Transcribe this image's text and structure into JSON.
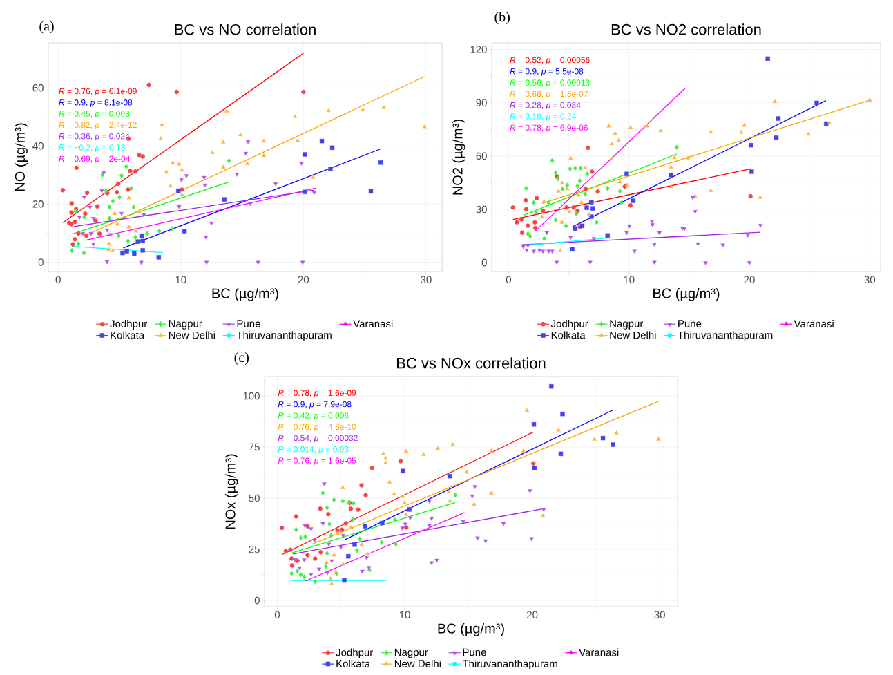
{
  "chart_data": [
    {
      "type": "scatter",
      "title": "BC vs NO correlation",
      "xlabel": "BC (µg/m³)",
      "ylabel": "NO (µg/m³)",
      "xlim": [
        -0.8,
        31.3
      ],
      "ylim": [
        -3.2,
        75.5
      ],
      "xticks": [
        0,
        10,
        20,
        30
      ],
      "yticks": [
        0,
        20,
        40,
        60
      ],
      "grid": true,
      "legend": "bottom",
      "annotations": [
        "(a)",
        "*R* = 0.76, *p* = 6.1e-09",
        "*R* = 0.9, *p* = 8.1e-08",
        "*R* = 0.45, *p* = 0.003",
        "*R* = 0.82, *p* = 2.4e-12",
        "*R* = 0.36, *p* = 0.024",
        "*R* = −0.2, *p* = 0.18",
        "*R* = 0.69, *p* = 2e-04"
      ],
      "series": [
        {
          "name": "Thiruvananthapuram",
          "color": "#00ffff",
          "marker": "circle"
        },
        {
          "name": "Varanasi",
          "color": "#ff00ff",
          "marker": "triangle"
        },
        {
          "name": "Jodhpur",
          "color": "#f44444",
          "marker": "circle",
          "x": [
            0.38,
            0.9,
            1.09,
            1.09,
            1.1,
            1.2,
            1.37,
            1.37,
            1.46,
            1.5,
            1.65,
            2.2,
            2.3,
            2.36,
            3.05,
            3.2,
            3.37,
            4.0,
            4.8,
            4.9,
            5.7,
            5.74,
            5.87,
            6.3,
            6.6,
            6.9,
            7.4,
            9.66,
            10.1,
            20.0
          ],
          "values": [
            24.8,
            13.5,
            13.1,
            17.1,
            20.2,
            6.2,
            13.9,
            7.9,
            18.3,
            32.5,
            9.9,
            16.7,
            9.1,
            23.9,
            14.3,
            19.2,
            9.8,
            23.8,
            24.1,
            27,
            25,
            42.5,
            31.4,
            31.2,
            36.9,
            36.4,
            61,
            58.6,
            25,
            58.6
          ]
        },
        {
          "name": "Kolkata",
          "color": "#4444ee",
          "marker": "square",
          "x": [
            5.25,
            5.6,
            6.2,
            6.9,
            6.5,
            6.9,
            8.2,
            6.8,
            10.3,
            9.8,
            13.55,
            20.1,
            21.5,
            22.35,
            22.2,
            26.3,
            20.1,
            25.5
          ],
          "values": [
            3.2,
            3.8,
            3.0,
            4.1,
            7.1,
            7.3,
            1.7,
            9.1,
            10.7,
            24.6,
            21.6,
            37.1,
            41.7,
            39.4,
            32.1,
            34.3,
            24.2,
            24.4
          ]
        },
        {
          "name": "Nagpur",
          "color": "#44ee44",
          "marker": "diamond",
          "x": [
            1.12,
            2.1,
            1.65,
            1.42,
            2.12,
            4.18,
            4.46,
            5.0,
            3.9,
            3.6,
            5.17,
            5.55,
            5.96,
            6.15,
            4.93,
            5.7,
            6.3,
            7.27,
            8.25,
            9.3,
            4.18,
            13.93
          ],
          "values": [
            4.0,
            3.2,
            6.3,
            17.5,
            15.5,
            19,
            21,
            22.4,
            24.6,
            30,
            29.8,
            32.9,
            25.4,
            19.0,
            9.1,
            7.3,
            8.6,
            9.9,
            10.7,
            11.5,
            15.1,
            34.9
          ]
        },
        {
          "name": "New Delhi",
          "color": "#ffb444",
          "marker": "triangle",
          "x": [
            4.14,
            4.09,
            4.46,
            4.6,
            4.84,
            5.78,
            5.78,
            6.34,
            6.62,
            8.36,
            8.46,
            8.83,
            9.15,
            9.34,
            9.84,
            10.1,
            10.1,
            12.58,
            13.46,
            13.74,
            13.46,
            14.87,
            16.76,
            16.76,
            15.43,
            19.3,
            19.53,
            20.8,
            22.05,
            24.84,
            26.55,
            29.88
          ],
          "values": [
            6.3,
            4.4,
            4.0,
            16.7,
            13.1,
            22.1,
            12.1,
            10.7,
            17.5,
            42.5,
            47.2,
            31,
            26.2,
            34.1,
            33.7,
            31.7,
            23.2,
            37.7,
            41.3,
            52,
            32.7,
            43.8,
            41.7,
            36.7,
            33.9,
            50.1,
            41.9,
            29.2,
            52.1,
            52.4,
            53.2,
            46.6
          ]
        },
        {
          "name": "Pune",
          "color": "#b055ee",
          "marker": "triangle-down",
          "x": [
            3.71,
            2.12,
            2.6,
            1.74,
            2.87,
            3.56,
            2.02,
            2.68,
            3.99,
            4.27,
            5.17,
            6.99,
            2.87,
            3.99,
            6.77,
            9.86,
            10.05,
            10.46,
            11.9,
            11.96,
            12.49,
            12.05,
            12.1,
            14.58,
            15.3,
            15.48,
            17.73,
            15.67,
            19.83,
            20.88,
            16.3,
            19.93
          ],
          "values": [
            30.8,
            22.4,
            19.0,
            15.5,
            15.1,
            24.6,
            9.9,
            9.9,
            11.1,
            9.5,
            16.8,
            16.3,
            6.3,
            0.2,
            0,
            19.2,
            28.4,
            29.8,
            29.2,
            26.6,
            13.5,
            8.7,
            0,
            30.3,
            37.5,
            41.5,
            27,
            20.2,
            34.1,
            24,
            0,
            0
          ]
        },
        {
          "type": "line",
          "color": "#ff0000",
          "x": [
            0.38,
            20.0
          ],
          "values": [
            13.6,
            71.9
          ]
        },
        {
          "type": "line",
          "color": "#0000ff",
          "x": [
            5.3,
            26.3
          ],
          "values": [
            4.9,
            39.0
          ]
        },
        {
          "type": "line",
          "color": "#00ff00",
          "x": [
            1.18,
            13.93
          ],
          "values": [
            9.7,
            27.6
          ]
        },
        {
          "type": "line",
          "color": "#ffa500",
          "x": [
            2.4,
            29.88
          ],
          "values": [
            9.5,
            63.9
          ]
        },
        {
          "type": "line",
          "color": "#a020f0",
          "x": [
            1.27,
            20.88
          ],
          "values": [
            12.3,
            24.8
          ]
        },
        {
          "type": "line",
          "color": "#00ffff",
          "x": [
            1.12,
            8.53
          ],
          "values": [
            5.5,
            3.3
          ]
        },
        {
          "type": "line",
          "color": "#ff00ff",
          "x": [
            2.2,
            21.0
          ],
          "values": [
            7.5,
            25.5
          ]
        }
      ]
    },
    {
      "type": "scatter",
      "title": "BC vs NO2 correlation",
      "xlabel": "BC (µg/m³)",
      "ylabel": "NO2 (µg/m³)",
      "xlim": [
        -1.4,
        30.9
      ],
      "ylim": [
        -5,
        123.7
      ],
      "xticks": [
        0,
        10,
        20,
        30
      ],
      "yticks": [
        0,
        30,
        60,
        90,
        120
      ],
      "grid": true,
      "legend": "bottom",
      "annotations": [
        "(b)",
        "*R* = 0.52, *p* = 0.00056",
        "*R* = 0.9, *p* = 5.5e-08",
        "*R* = 0.56, *p* = 0.00013",
        "*R* = 0.68, *p* = 1.8e-07",
        "*R* = 0.28, *p* = 0.084",
        "*R* = 0.18, *p* = 0.24",
        "*R* = 0.78, *p* = 6.9e-06"
      ],
      "series": [
        {
          "name": "Thiruvananthapuram",
          "color": "#00ffff",
          "marker": "circle"
        },
        {
          "name": "Varanasi",
          "color": "#ff00ff",
          "marker": "triangle"
        },
        {
          "name": "Jodhpur",
          "color": "#f44444",
          "marker": "circle",
          "x": [
            0.36,
            0.69,
            1.07,
            1.42,
            1.46,
            1.13,
            1.61,
            2.18,
            2.22,
            2.34,
            2.86,
            4.0,
            4.83,
            5.4,
            5.73,
            5.92,
            6.4,
            6.94,
            6.59,
            7.41,
            9.66,
            10.13,
            20.1
          ],
          "values": [
            31.1,
            22.7,
            24.4,
            35,
            30.1,
            16.9,
            20.8,
            22.7,
            19.5,
            36.3,
            29.2,
            48.6,
            31.1,
            31.1,
            29.2,
            20.1,
            41.5,
            51.2,
            64.6,
            40,
            42.8,
            32.2,
            37.4
          ]
        },
        {
          "name": "Kolkata",
          "color": "#4444ee",
          "marker": "square",
          "x": [
            5.29,
            5.54,
            6.11,
            6.49,
            6.88,
            7.0,
            6.88,
            8.22,
            9.81,
            10.36,
            13.49,
            20.13,
            20.19,
            21.53,
            22.24,
            22.41,
            25.59,
            26.38
          ],
          "values": [
            7.5,
            19.2,
            20.7,
            30.9,
            34,
            30.5,
            25.9,
            15.3,
            49.9,
            34.8,
            49.3,
            66.1,
            51.2,
            114.8,
            70.3,
            81.1,
            89.9,
            78.2
          ]
        },
        {
          "name": "Nagpur",
          "color": "#44ee44",
          "marker": "diamond",
          "x": [
            1.46,
            1.61,
            1.8,
            2.09,
            2.28,
            2.95,
            3.33,
            3.62,
            3.91,
            4.1,
            4.48,
            3.91,
            4.77,
            4.87,
            5.11,
            5.54,
            5.98,
            5.92,
            5.73,
            5.63,
            6.36,
            6.55,
            7.32,
            8.22,
            9.24,
            9.37,
            13.97
          ],
          "values": [
            41.8,
            16.2,
            14.9,
            33.7,
            28.5,
            13.6,
            33.7,
            57.5,
            50.6,
            47.3,
            41.5,
            24.0,
            20.7,
            43.5,
            52.8,
            53.2,
            53.2,
            46.0,
            43.1,
            27.5,
            38.6,
            49.9,
            22.7,
            41.8,
            40.2,
            33.7,
            64.9
          ]
        },
        {
          "name": "New Delhi",
          "color": "#ffb444",
          "marker": "triangle",
          "x": [
            2.95,
            2.76,
            4.16,
            4.44,
            4.43,
            4.29,
            5.16,
            5.06,
            4.87,
            5.82,
            6.05,
            6.36,
            6.69,
            8.32,
            8.56,
            9.14,
            8.51,
            8.85,
            9.24,
            9.85,
            10.13,
            11.48,
            12.63,
            13.49,
            13.78,
            13.52,
            14.89,
            16.8,
            16.8,
            15.5,
            19.33,
            19.58,
            20.9,
            22.11,
            24.92,
            26.65,
            30.0
          ],
          "values": [
            34.4,
            25.7,
            40.2,
            44.7,
            22.7,
            6.7,
            58.7,
            28.5,
            41.5,
            37.9,
            33.7,
            53.2,
            27,
            76.8,
            66.8,
            68.7,
            58.4,
            72.6,
            45.4,
            43.5,
            75.9,
            76.8,
            74.2,
            53.8,
            59,
            42.8,
            58.8,
            73.5,
            40.5,
            37.4,
            73.3,
            77.2,
            36.7,
            90.5,
            72.3,
            78.5,
            91.4
          ]
        },
        {
          "name": "Pune",
          "color": "#b055ee",
          "marker": "triangle-down",
          "x": [
            1.22,
            1.61,
            1.51,
            2.09,
            2.57,
            2.86,
            3.33,
            3.62,
            3.18,
            4.0,
            5.16,
            6.78,
            7.07,
            9.81,
            10.04,
            10.46,
            11.91,
            11.95,
            12.11,
            12.11,
            12.53,
            14.44,
            15.3,
            15.5,
            14.6,
            15.73,
            17.8,
            16.36,
            19.87,
            20.0,
            20.92
          ],
          "values": [
            9.1,
            9.7,
            7.1,
            6.5,
            7.1,
            6.5,
            6.5,
            6.5,
            16.9,
            0.3,
            14.3,
            0.3,
            13.6,
            16.9,
            20.7,
            6.5,
            23.3,
            21.4,
            10.4,
            0.3,
            16.9,
            19.5,
            36.7,
            28.8,
            19.1,
            10.6,
            10,
            0,
            15.6,
            0,
            21.1
          ]
        },
        {
          "type": "line",
          "color": "#ff0000",
          "x": [
            0.36,
            20.1
          ],
          "values": [
            24.3,
            52.8
          ]
        },
        {
          "type": "line",
          "color": "#0000ff",
          "x": [
            5.29,
            26.36
          ],
          "values": [
            20.1,
            91.2
          ]
        },
        {
          "type": "line",
          "color": "#00ff00",
          "x": [
            1.22,
            13.97
          ],
          "values": [
            26.6,
            61.2
          ]
        },
        {
          "type": "line",
          "color": "#ffa500",
          "x": [
            2.76,
            30.0
          ],
          "values": [
            33.3,
            91.4
          ]
        },
        {
          "type": "line",
          "color": "#a020f0",
          "x": [
            1.13,
            20.92
          ],
          "values": [
            10.1,
            17.1
          ]
        },
        {
          "type": "line",
          "color": "#00ffff",
          "x": [
            1.13,
            8.51
          ],
          "values": [
            9.6,
            14.0
          ]
        },
        {
          "type": "line",
          "color": "#ff00ff",
          "x": [
            2.18,
            14.69
          ],
          "values": [
            17.5,
            98.3
          ]
        }
      ]
    },
    {
      "type": "scatter",
      "title": "BC vs NOx correlation",
      "xlabel": "BC (µg/m³)",
      "ylabel": "NOx (µg/m³)",
      "xlim": [
        -1,
        31.4
      ],
      "ylim": [
        -3,
        109.5
      ],
      "xticks": [
        0,
        10,
        20,
        30
      ],
      "yticks": [
        0,
        25,
        50,
        75,
        100
      ],
      "grid": true,
      "legend": "bottom",
      "annotations": [
        "(c)",
        "*R* = 0.78, *p* = 1.6e-09",
        "*R* = 0.9, *p* = 7.9e-08",
        "*R* = 0.42, *p* = 0.006",
        "*R* = 0.76, *p* = 4.8e-10",
        "*R* = 0.54, *p* = 0.00032",
        "*R* = 0.014, *p* = 0.93",
        "*R* = 0.76, *p* = 1.6e-05"
      ],
      "series": [
        {
          "name": "Thiruvananthapuram",
          "color": "#00ffff",
          "marker": "circle"
        },
        {
          "name": "Varanasi",
          "color": "#ff00ff",
          "marker": "triangle"
        },
        {
          "name": "Jodhpur",
          "color": "#f44444",
          "marker": "circle",
          "x": [
            0.36,
            0.67,
            1.03,
            1.12,
            1.17,
            1.48,
            1.57,
            2.38,
            2.38,
            2.97,
            3.37,
            3.41,
            4.0,
            4.72,
            5.08,
            5.39,
            5.68,
            5.77,
            6.34,
            6.61,
            6.94,
            7.44,
            9.68,
            10.12,
            20.09
          ],
          "values": [
            35.5,
            24.1,
            24.8,
            20.5,
            17.1,
            41.1,
            19.4,
            36.3,
            22.2,
            20.5,
            44.9,
            23.6,
            42.2,
            34.2,
            34.6,
            37.7,
            47.7,
            44.9,
            44.4,
            56.3,
            51.5,
            64.8,
            68.1,
            35.7,
            67.0
          ]
        },
        {
          "name": "Kolkata",
          "color": "#4444ee",
          "marker": "square",
          "x": [
            5.26,
            5.57,
            6.07,
            6.88,
            8.23,
            10.36,
            9.85,
            13.55,
            20.13,
            20.18,
            21.5,
            22.24,
            22.38,
            25.55,
            26.34
          ],
          "values": [
            9.8,
            21.6,
            27.3,
            36.3,
            37.9,
            44.5,
            63.3,
            60.8,
            86.1,
            64.8,
            104.7,
            71.7,
            91.2,
            79.4,
            76.2
          ]
        },
        {
          "name": "Nagpur",
          "color": "#44ee44",
          "marker": "diamond",
          "x": [
            1.12,
            1.48,
            1.57,
            1.84,
            2.2,
            1.84,
            2.11,
            2.97,
            3.58,
            3.91,
            4.09,
            4.23,
            3.82,
            3.91,
            4.45,
            4.66,
            5.14,
            5.62,
            5.98,
            5.93,
            6.25,
            6.47,
            7.24,
            8.2,
            9.31,
            9.23,
            13.96
          ],
          "values": [
            13.2,
            34.6,
            14.3,
            30.6,
            31.1,
            12.6,
            11.5,
            9.2,
            52.6,
            45.3,
            37.4,
            31.8,
            16.6,
            23.0,
            49.2,
            13.2,
            48.6,
            48.1,
            47.5,
            39.6,
            24.4,
            30.1,
            14.9,
            28.4,
            27.5,
            39.4,
            51.5
          ]
        },
        {
          "name": "New Delhi",
          "color": "#ffb444",
          "marker": "triangle",
          "x": [
            4.27,
            4.18,
            3.87,
            4.45,
            4.59,
            5.17,
            4.72,
            5.14,
            5.8,
            6.61,
            7.06,
            8.81,
            8.32,
            8.5,
            8.5,
            9.17,
            9.85,
            9.98,
            10.12,
            10.12,
            11.48,
            12.59,
            13.77,
            13.46,
            13.55,
            14.86,
            16.79,
            16.79,
            15.44,
            19.31,
            19.58,
            20.85,
            22.07,
            24.88,
            26.61,
            29.91
          ],
          "values": [
            8.1,
            10.6,
            18.5,
            22.2,
            13.8,
            17.7,
            32.9,
            55.1,
            35.7,
            27.3,
            22.7,
            57.9,
            71.7,
            69.5,
            67.2,
            52.0,
            50.9,
            47.7,
            72.9,
            41.9,
            71.4,
            74.3,
            76.2,
            53.1,
            48.6,
            62.7,
            73.1,
            52.4,
            47,
            73.1,
            92.9,
            41.3,
            83.3,
            78.8,
            81.9,
            78.8
          ]
        },
        {
          "name": "Pune",
          "color": "#b055ee",
          "marker": "triangle-down",
          "x": [
            1.39,
            1.75,
            2.15,
            2.11,
            2.65,
            2.65,
            2.92,
            3.28,
            3.58,
            3.69,
            3.95,
            4.27,
            4.04,
            5.17,
            4.99,
            6.67,
            7.01,
            7.19,
            9.82,
            10.04,
            10.43,
            11.93,
            11.93,
            12.11,
            12.52,
            12.11,
            14.58,
            15.5,
            15.3,
            17.75,
            15.71,
            16.34,
            19.82,
            19.95,
            20.9
          ],
          "values": [
            19.9,
            16.0,
            36.8,
            19.9,
            35.1,
            12.8,
            29.5,
            15.4,
            37.6,
            57.1,
            13.7,
            19.4,
            27.6,
            31.8,
            26.1,
            14.3,
            21.0,
            16.2,
            35.4,
            37.4,
            40.5,
            48.6,
            36.8,
            18.5,
            19.7,
            40.2,
            38.7,
            55.7,
            51.1,
            37.6,
            30.6,
            29.2,
            53.7,
            30.3,
            44.5
          ]
        },
        {
          "type": "line",
          "color": "#ff0000",
          "x": [
            0.39,
            20.04
          ],
          "values": [
            22.5,
            82.2
          ]
        },
        {
          "type": "line",
          "color": "#0000ff",
          "x": [
            5.3,
            26.34
          ],
          "values": [
            29.7,
            93.1
          ]
        },
        {
          "type": "line",
          "color": "#00ff00",
          "x": [
            1.17,
            13.96
          ],
          "values": [
            23.3,
            47.9
          ]
        },
        {
          "type": "line",
          "color": "#ffa500",
          "x": [
            2.74,
            29.91
          ],
          "values": [
            27.5,
            97.4
          ]
        },
        {
          "type": "line",
          "color": "#a020f0",
          "x": [
            1.21,
            20.94
          ],
          "values": [
            22.7,
            44.9
          ]
        },
        {
          "type": "line",
          "color": "#00ffff",
          "x": [
            1.12,
            8.56
          ],
          "values": [
            9.8,
            9.8
          ]
        },
        {
          "type": "line",
          "color": "#ff00ff",
          "x": [
            2.2,
            14.69
          ],
          "values": [
            9.5,
            43.0
          ]
        }
      ]
    }
  ]
}
